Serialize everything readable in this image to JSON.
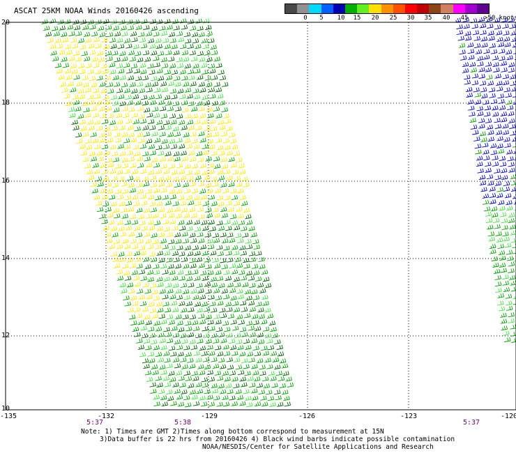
{
  "title": "ASCAT 25KM NOAA Winds 20160426 ascending",
  "legend": {
    "colors": [
      "#484848",
      "#909090",
      "#00d8ff",
      "#0060ff",
      "#0000b0",
      "#00b000",
      "#60f020",
      "#ffe000",
      "#ff9000",
      "#ff5000",
      "#ff0000",
      "#c00000",
      "#8b4513",
      "#d08060",
      "#ff00ff",
      "#a000d0",
      "#600090"
    ],
    "labels": [
      "0",
      "5",
      "10",
      "15",
      "20",
      "25",
      "30",
      "35",
      "40",
      "45",
      ">50 knots"
    ]
  },
  "axes": {
    "lon_labels": [
      "-135",
      "-132",
      "-129",
      "-126",
      "-123",
      "-120"
    ],
    "lat_labels": [
      "20",
      "18",
      "16",
      "14",
      "12",
      "10"
    ]
  },
  "pass_times": [
    "5:37",
    "5:38",
    "5:37"
  ],
  "footer": {
    "note1": "Note: 1) Times are GMT 2)Times along bottom correspond to measurement at 15N",
    "note2": "3)Data buffer is 22 hrs from 20160426 4) Black wind barbs indicate possible contamination",
    "credit": "NOAA/NESDIS/Center for Satellite Applications and Research"
  },
  "barb_colors": {
    "dark_green": "#006000",
    "green": "#00a000",
    "light_green": "#40e040",
    "yellow": "#ffe800",
    "blue": "#0000c8"
  }
}
